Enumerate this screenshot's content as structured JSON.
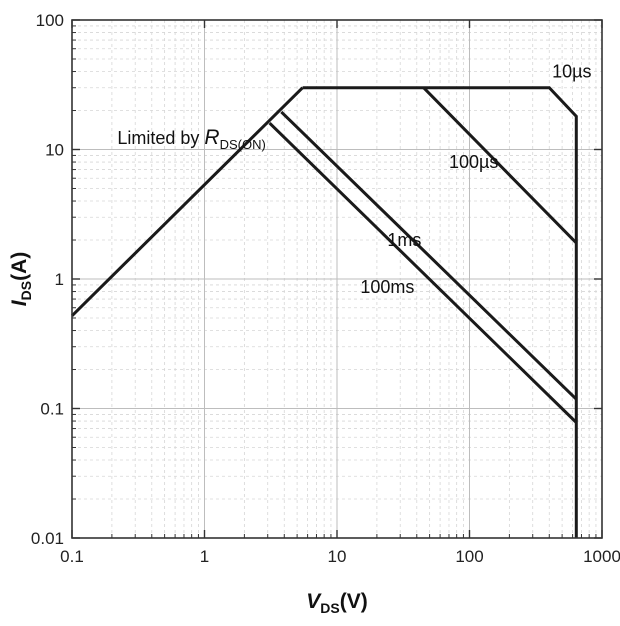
{
  "chart_data": {
    "type": "line",
    "x_scale": "log",
    "y_scale": "log",
    "xlim": [
      0.1,
      1000
    ],
    "ylim": [
      0.01,
      100
    ],
    "grid": true,
    "x_ticks": [
      {
        "value": 0.1,
        "label": "0.1"
      },
      {
        "value": 1,
        "label": "1"
      },
      {
        "value": 10,
        "label": "10"
      },
      {
        "value": 100,
        "label": "100"
      },
      {
        "value": 1000,
        "label": "1000"
      }
    ],
    "y_ticks": [
      {
        "value": 0.01,
        "label": "0.01"
      },
      {
        "value": 0.1,
        "label": "0.1"
      },
      {
        "value": 1,
        "label": "1"
      },
      {
        "value": 10,
        "label": "10"
      },
      {
        "value": 100,
        "label": "100"
      }
    ],
    "xlabel": {
      "main": "V",
      "sub": "DS",
      "unit": "(V)"
    },
    "ylabel": {
      "main": "I",
      "sub": "DS",
      "unit": "(A)"
    },
    "series": [
      {
        "name": "10µs",
        "points": [
          [
            5.5,
            30
          ],
          [
            400,
            30
          ],
          [
            640,
            18
          ],
          [
            640,
            0.01
          ]
        ]
      },
      {
        "name": "100µs",
        "points": [
          [
            45,
            30
          ],
          [
            640,
            1.9
          ]
        ]
      },
      {
        "name": "1ms",
        "points": [
          [
            3.8,
            19.5
          ],
          [
            640,
            0.118
          ]
        ]
      },
      {
        "name": "100ms",
        "points": [
          [
            3.1,
            16
          ],
          [
            640,
            0.078
          ]
        ]
      },
      {
        "name": "",
        "points": [
          [
            0.1,
            0.52
          ],
          [
            5.5,
            30
          ]
        ]
      }
    ],
    "annotations": [
      {
        "id": "limited",
        "text": "Limited by ",
        "italic_main": "R",
        "sub": "DS(ON)",
        "at": [
          0.22,
          11
        ]
      },
      {
        "id": "10us",
        "text": "10µs",
        "at": [
          420,
          36
        ]
      },
      {
        "id": "100us",
        "text": "100µs",
        "at": [
          70,
          7.2
        ]
      },
      {
        "id": "1ms",
        "text": "1ms",
        "at": [
          24,
          1.8
        ]
      },
      {
        "id": "100ms",
        "text": "100ms",
        "at": [
          15,
          0.78
        ]
      }
    ]
  }
}
